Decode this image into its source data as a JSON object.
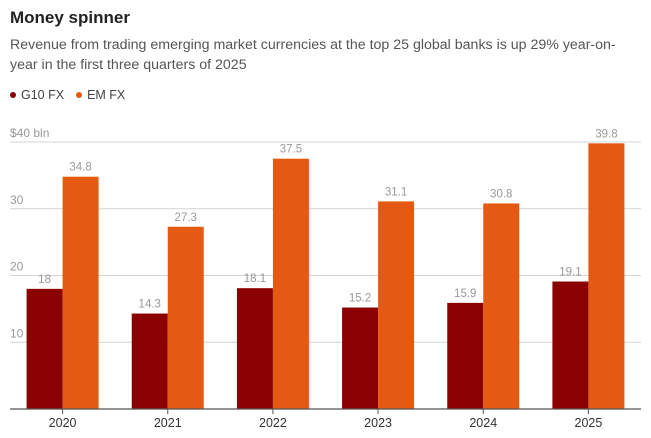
{
  "chart_data": {
    "type": "bar",
    "title": "Money spinner",
    "subtitle": "Revenue from trading emerging market currencies at the top 25 global banks is up 29% year-on-year in the first three quarters of 2025",
    "categories": [
      "2020",
      "2021",
      "2022",
      "2023",
      "2024",
      "2025"
    ],
    "series": [
      {
        "name": "G10 FX",
        "color": "#8b0000",
        "values": [
          18,
          14.3,
          18.1,
          15.2,
          15.9,
          19.1
        ],
        "labels": [
          "18",
          "14.3",
          "18.1",
          "15.2",
          "15.9",
          "19.1"
        ]
      },
      {
        "name": "EM FX",
        "color": "#e55a12",
        "values": [
          34.8,
          27.3,
          37.5,
          31.1,
          30.8,
          39.8
        ],
        "labels": [
          "34.8",
          "27.3",
          "37.5",
          "31.1",
          "30.8",
          "39.8"
        ]
      }
    ],
    "ylim": [
      0,
      40
    ],
    "yticks": [
      10,
      20,
      30,
      40
    ],
    "ytick_labels": [
      "10",
      "20",
      "30",
      "$40 bln"
    ],
    "xlabel": "",
    "ylabel": "",
    "grid": true,
    "legend": "top-left"
  },
  "colors": {
    "g10": "#8b0000",
    "em": "#e55a12",
    "grid": "#d4d4d4",
    "axis": "#555555",
    "tick_text": "#999999",
    "value_label": "#999999",
    "category_label": "#333333"
  }
}
